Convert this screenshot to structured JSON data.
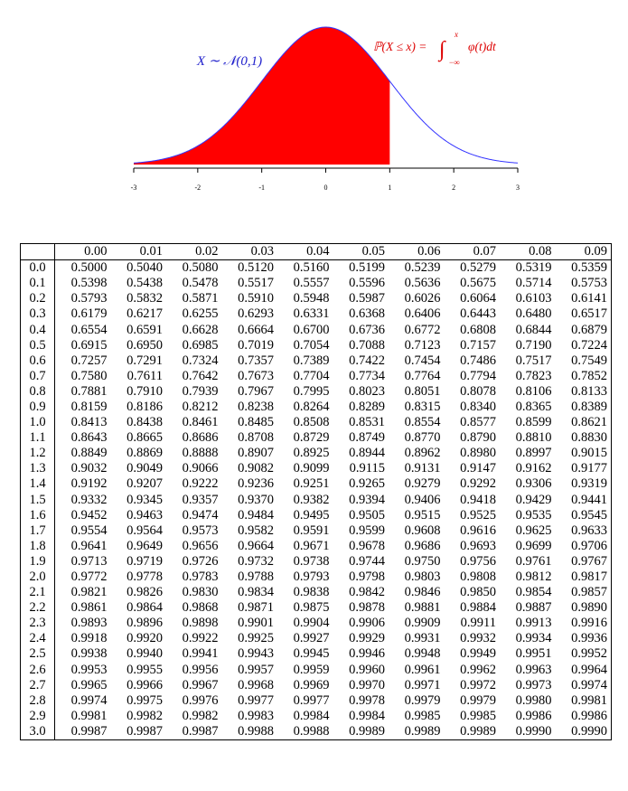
{
  "figure": {
    "distribution_label": "X ∼ 𝒩(0,1)",
    "formula_lhs": "ℙ(X ≤ x) =",
    "integral_sign": "∫",
    "integral_upper": "x",
    "integral_lower": "−∞",
    "integrand": "φ(t)dt",
    "xlim": [
      -3,
      3
    ],
    "xticks": [
      -3,
      -2,
      -1,
      0,
      1,
      2,
      3
    ],
    "shade_upper": 1,
    "curve_color": "#3333ff",
    "shade_color": "#ff0000"
  },
  "table": {
    "columns": [
      "0.00",
      "0.01",
      "0.02",
      "0.03",
      "0.04",
      "0.05",
      "0.06",
      "0.07",
      "0.08",
      "0.09"
    ],
    "rows": [
      [
        "0.0",
        "0.5000",
        "0.5040",
        "0.5080",
        "0.5120",
        "0.5160",
        "0.5199",
        "0.5239",
        "0.5279",
        "0.5319",
        "0.5359"
      ],
      [
        "0.1",
        "0.5398",
        "0.5438",
        "0.5478",
        "0.5517",
        "0.5557",
        "0.5596",
        "0.5636",
        "0.5675",
        "0.5714",
        "0.5753"
      ],
      [
        "0.2",
        "0.5793",
        "0.5832",
        "0.5871",
        "0.5910",
        "0.5948",
        "0.5987",
        "0.6026",
        "0.6064",
        "0.6103",
        "0.6141"
      ],
      [
        "0.3",
        "0.6179",
        "0.6217",
        "0.6255",
        "0.6293",
        "0.6331",
        "0.6368",
        "0.6406",
        "0.6443",
        "0.6480",
        "0.6517"
      ],
      [
        "0.4",
        "0.6554",
        "0.6591",
        "0.6628",
        "0.6664",
        "0.6700",
        "0.6736",
        "0.6772",
        "0.6808",
        "0.6844",
        "0.6879"
      ],
      [
        "0.5",
        "0.6915",
        "0.6950",
        "0.6985",
        "0.7019",
        "0.7054",
        "0.7088",
        "0.7123",
        "0.7157",
        "0.7190",
        "0.7224"
      ],
      [
        "0.6",
        "0.7257",
        "0.7291",
        "0.7324",
        "0.7357",
        "0.7389",
        "0.7422",
        "0.7454",
        "0.7486",
        "0.7517",
        "0.7549"
      ],
      [
        "0.7",
        "0.7580",
        "0.7611",
        "0.7642",
        "0.7673",
        "0.7704",
        "0.7734",
        "0.7764",
        "0.7794",
        "0.7823",
        "0.7852"
      ],
      [
        "0.8",
        "0.7881",
        "0.7910",
        "0.7939",
        "0.7967",
        "0.7995",
        "0.8023",
        "0.8051",
        "0.8078",
        "0.8106",
        "0.8133"
      ],
      [
        "0.9",
        "0.8159",
        "0.8186",
        "0.8212",
        "0.8238",
        "0.8264",
        "0.8289",
        "0.8315",
        "0.8340",
        "0.8365",
        "0.8389"
      ],
      [
        "1.0",
        "0.8413",
        "0.8438",
        "0.8461",
        "0.8485",
        "0.8508",
        "0.8531",
        "0.8554",
        "0.8577",
        "0.8599",
        "0.8621"
      ],
      [
        "1.1",
        "0.8643",
        "0.8665",
        "0.8686",
        "0.8708",
        "0.8729",
        "0.8749",
        "0.8770",
        "0.8790",
        "0.8810",
        "0.8830"
      ],
      [
        "1.2",
        "0.8849",
        "0.8869",
        "0.8888",
        "0.8907",
        "0.8925",
        "0.8944",
        "0.8962",
        "0.8980",
        "0.8997",
        "0.9015"
      ],
      [
        "1.3",
        "0.9032",
        "0.9049",
        "0.9066",
        "0.9082",
        "0.9099",
        "0.9115",
        "0.9131",
        "0.9147",
        "0.9162",
        "0.9177"
      ],
      [
        "1.4",
        "0.9192",
        "0.9207",
        "0.9222",
        "0.9236",
        "0.9251",
        "0.9265",
        "0.9279",
        "0.9292",
        "0.9306",
        "0.9319"
      ],
      [
        "1.5",
        "0.9332",
        "0.9345",
        "0.9357",
        "0.9370",
        "0.9382",
        "0.9394",
        "0.9406",
        "0.9418",
        "0.9429",
        "0.9441"
      ],
      [
        "1.6",
        "0.9452",
        "0.9463",
        "0.9474",
        "0.9484",
        "0.9495",
        "0.9505",
        "0.9515",
        "0.9525",
        "0.9535",
        "0.9545"
      ],
      [
        "1.7",
        "0.9554",
        "0.9564",
        "0.9573",
        "0.9582",
        "0.9591",
        "0.9599",
        "0.9608",
        "0.9616",
        "0.9625",
        "0.9633"
      ],
      [
        "1.8",
        "0.9641",
        "0.9649",
        "0.9656",
        "0.9664",
        "0.9671",
        "0.9678",
        "0.9686",
        "0.9693",
        "0.9699",
        "0.9706"
      ],
      [
        "1.9",
        "0.9713",
        "0.9719",
        "0.9726",
        "0.9732",
        "0.9738",
        "0.9744",
        "0.9750",
        "0.9756",
        "0.9761",
        "0.9767"
      ],
      [
        "2.0",
        "0.9772",
        "0.9778",
        "0.9783",
        "0.9788",
        "0.9793",
        "0.9798",
        "0.9803",
        "0.9808",
        "0.9812",
        "0.9817"
      ],
      [
        "2.1",
        "0.9821",
        "0.9826",
        "0.9830",
        "0.9834",
        "0.9838",
        "0.9842",
        "0.9846",
        "0.9850",
        "0.9854",
        "0.9857"
      ],
      [
        "2.2",
        "0.9861",
        "0.9864",
        "0.9868",
        "0.9871",
        "0.9875",
        "0.9878",
        "0.9881",
        "0.9884",
        "0.9887",
        "0.9890"
      ],
      [
        "2.3",
        "0.9893",
        "0.9896",
        "0.9898",
        "0.9901",
        "0.9904",
        "0.9906",
        "0.9909",
        "0.9911",
        "0.9913",
        "0.9916"
      ],
      [
        "2.4",
        "0.9918",
        "0.9920",
        "0.9922",
        "0.9925",
        "0.9927",
        "0.9929",
        "0.9931",
        "0.9932",
        "0.9934",
        "0.9936"
      ],
      [
        "2.5",
        "0.9938",
        "0.9940",
        "0.9941",
        "0.9943",
        "0.9945",
        "0.9946",
        "0.9948",
        "0.9949",
        "0.9951",
        "0.9952"
      ],
      [
        "2.6",
        "0.9953",
        "0.9955",
        "0.9956",
        "0.9957",
        "0.9959",
        "0.9960",
        "0.9961",
        "0.9962",
        "0.9963",
        "0.9964"
      ],
      [
        "2.7",
        "0.9965",
        "0.9966",
        "0.9967",
        "0.9968",
        "0.9969",
        "0.9970",
        "0.9971",
        "0.9972",
        "0.9973",
        "0.9974"
      ],
      [
        "2.8",
        "0.9974",
        "0.9975",
        "0.9976",
        "0.9977",
        "0.9977",
        "0.9978",
        "0.9979",
        "0.9979",
        "0.9980",
        "0.9981"
      ],
      [
        "2.9",
        "0.9981",
        "0.9982",
        "0.9982",
        "0.9983",
        "0.9984",
        "0.9984",
        "0.9985",
        "0.9985",
        "0.9986",
        "0.9986"
      ],
      [
        "3.0",
        "0.9987",
        "0.9987",
        "0.9987",
        "0.9988",
        "0.9988",
        "0.9989",
        "0.9989",
        "0.9989",
        "0.9990",
        "0.9990"
      ]
    ]
  }
}
